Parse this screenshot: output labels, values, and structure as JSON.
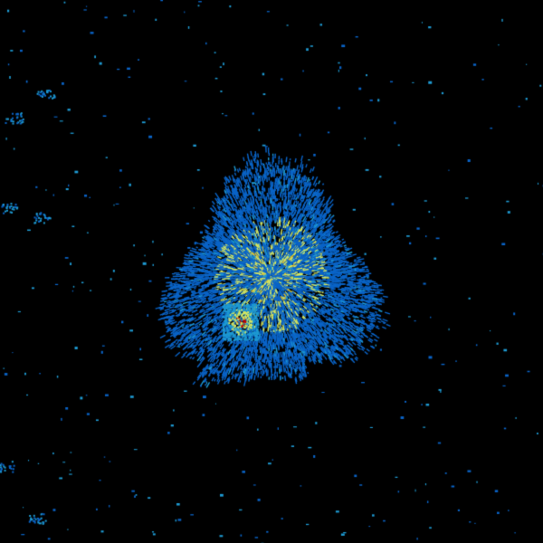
{
  "image": {
    "background": "#000000",
    "palette": {
      "weak": "#0a64c8",
      "light": "#1e9ad2",
      "moderate": "#d8e860",
      "strong": "#e8c020",
      "intense": "#c80000"
    }
  }
}
